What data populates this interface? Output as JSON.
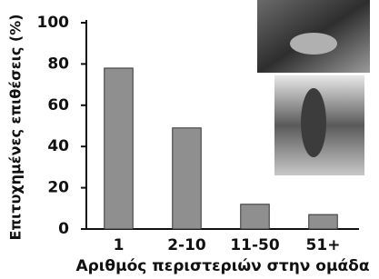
{
  "chart_data": {
    "type": "bar",
    "categories": [
      "1",
      "2-10",
      "11-50",
      "51+"
    ],
    "values": [
      78,
      49,
      12,
      7
    ],
    "color": "#8f8f8f",
    "ylim": [
      0,
      100
    ],
    "yticks": [
      0,
      20,
      40,
      60,
      80,
      100
    ],
    "xlabel": "Αριθμός περιστεριών στην ομάδα",
    "ylabel": "Επιτυχημένες επιθέσεις (%)"
  }
}
